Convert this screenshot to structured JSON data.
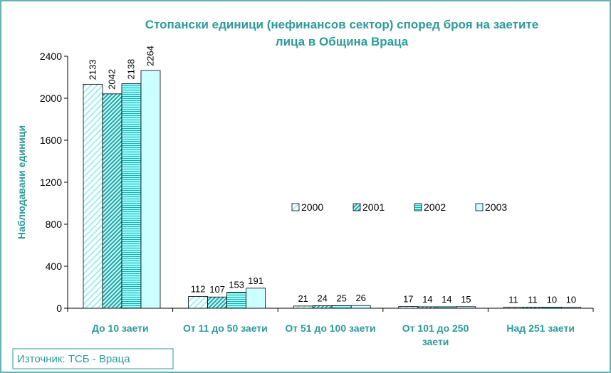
{
  "chart_data": {
    "type": "bar",
    "title": "Стопански единици (нефинансов сектор) според броя на заетите лица в Община Враца",
    "y_label": "Наблюдавани единици",
    "source": "Източник: ТСБ - Враца",
    "categories": [
      "До 10 заети",
      "От 11 до 50 заети",
      "От 51 до 100 заети",
      "От 101 до 250 заети",
      "Над 251 заети"
    ],
    "series": [
      {
        "name": "2000",
        "color": "#e0ffff",
        "values": [
          2133,
          112,
          21,
          17,
          11
        ]
      },
      {
        "name": "2001",
        "color": "#33a0a0",
        "values": [
          2042,
          107,
          24,
          14,
          11
        ]
      },
      {
        "name": "2002",
        "color": "#66e0e0",
        "values": [
          2138,
          153,
          25,
          14,
          10
        ]
      },
      {
        "name": "2003",
        "color": "#ccffff",
        "values": [
          2264,
          191,
          26,
          15,
          10
        ]
      }
    ],
    "ylim": [
      0,
      2400
    ],
    "yticks": [
      0,
      400,
      800,
      1200,
      1600,
      2000,
      2400
    ]
  }
}
